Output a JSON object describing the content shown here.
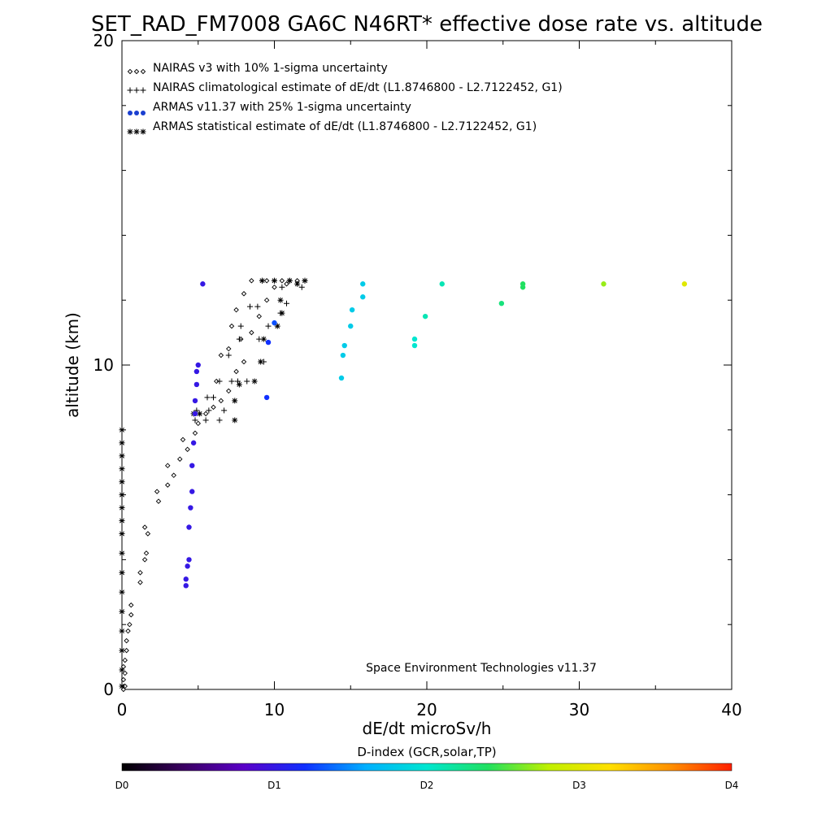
{
  "chart_data": {
    "type": "scatter",
    "title": "SET_RAD_FM7008  GA6C N46RT* effective dose rate vs. altitude",
    "xlabel": "dE/dt microSv/h",
    "ylabel": "altitude (km)",
    "xlim": [
      0,
      40
    ],
    "ylim": [
      0,
      20
    ],
    "x_ticks": [
      "0",
      "10",
      "20",
      "30",
      "40"
    ],
    "y_ticks": [
      "0",
      "10",
      "20"
    ],
    "grid": false,
    "legend_position": "top-left",
    "legend": [
      {
        "symbol": "diamond",
        "marker": "◇◇◇",
        "label": "NAIRAS v3 with 10% 1-sigma uncertainty"
      },
      {
        "symbol": "plus",
        "marker": "+++",
        "label": "NAIRAS climatological estimate of dE/dt (L1.8746800 - L2.7122452, G1)"
      },
      {
        "symbol": "dot",
        "marker": "●●●",
        "label": "ARMAS v11.37 with 25% 1-sigma uncertainty",
        "color": "#1a3fd0"
      },
      {
        "symbol": "star",
        "marker": "***",
        "label": "ARMAS statistical estimate of dE/dt (L1.8746800 - L2.7122452, G1)"
      }
    ],
    "annotation": "Space Environment Technologies v11.37",
    "colorbar": {
      "title": "D-index (GCR,solar,TP)",
      "labels": [
        {
          "text": "D0",
          "value": 0
        },
        {
          "text": "D1",
          "value": 1
        },
        {
          "text": "D2",
          "value": 2
        },
        {
          "text": "D3",
          "value": 3
        },
        {
          "text": "D4",
          "value": 4
        }
      ],
      "colors": [
        "#000000",
        "#3a0060",
        "#5a00c8",
        "#1030ff",
        "#00b0ff",
        "#00e6d0",
        "#20e060",
        "#c0f000",
        "#ffe000",
        "#ff9000",
        "#ff2000"
      ]
    },
    "series": [
      {
        "name": "NAIRAS v3 with 10% 1-sigma uncertainty",
        "symbol": "diamond",
        "points": [
          [
            0.1,
            0.0
          ],
          [
            0.2,
            0.1
          ],
          [
            0.1,
            0.3
          ],
          [
            0.2,
            0.5
          ],
          [
            0.1,
            0.7
          ],
          [
            0.2,
            0.9
          ],
          [
            0.3,
            1.2
          ],
          [
            0.3,
            1.5
          ],
          [
            0.4,
            1.8
          ],
          [
            0.5,
            2.0
          ],
          [
            0.6,
            2.3
          ],
          [
            0.6,
            2.6
          ],
          [
            1.2,
            3.3
          ],
          [
            1.2,
            3.6
          ],
          [
            1.5,
            4.0
          ],
          [
            1.6,
            4.2
          ],
          [
            1.7,
            4.8
          ],
          [
            1.5,
            5.0
          ],
          [
            2.4,
            5.8
          ],
          [
            2.3,
            6.1
          ],
          [
            3.0,
            6.3
          ],
          [
            3.4,
            6.6
          ],
          [
            3.0,
            6.9
          ],
          [
            3.8,
            7.1
          ],
          [
            4.3,
            7.4
          ],
          [
            4.0,
            7.7
          ],
          [
            4.8,
            7.9
          ],
          [
            5.0,
            8.2
          ],
          [
            5.5,
            8.5
          ],
          [
            6.0,
            8.7
          ],
          [
            6.5,
            8.9
          ],
          [
            7.0,
            9.2
          ],
          [
            6.2,
            9.5
          ],
          [
            7.5,
            9.8
          ],
          [
            8.0,
            10.1
          ],
          [
            6.5,
            10.3
          ],
          [
            7.0,
            10.5
          ],
          [
            7.8,
            10.8
          ],
          [
            8.5,
            11.0
          ],
          [
            7.2,
            11.2
          ],
          [
            9.0,
            11.5
          ],
          [
            7.5,
            11.7
          ],
          [
            9.5,
            12.0
          ],
          [
            8.0,
            12.2
          ],
          [
            10.0,
            12.4
          ],
          [
            10.8,
            12.5
          ],
          [
            8.5,
            12.6
          ],
          [
            9.5,
            12.6
          ],
          [
            10.5,
            12.6
          ],
          [
            11.5,
            12.6
          ]
        ]
      },
      {
        "name": "NAIRAS climatological estimate of dE/dt (L1.8746800 - L2.7122452, G1)",
        "symbol": "plus",
        "points": [
          [
            4.8,
            8.3
          ],
          [
            5.5,
            8.3
          ],
          [
            6.4,
            8.3
          ],
          [
            4.9,
            8.6
          ],
          [
            5.7,
            8.6
          ],
          [
            6.7,
            8.6
          ],
          [
            5.6,
            9.0
          ],
          [
            6.0,
            9.0
          ],
          [
            6.4,
            9.5
          ],
          [
            7.6,
            9.5
          ],
          [
            7.2,
            9.5
          ],
          [
            8.2,
            9.5
          ],
          [
            7.0,
            10.3
          ],
          [
            9.3,
            10.1
          ],
          [
            7.7,
            10.8
          ],
          [
            9.0,
            10.8
          ],
          [
            7.8,
            11.2
          ],
          [
            9.6,
            11.2
          ],
          [
            8.4,
            11.8
          ],
          [
            8.9,
            11.8
          ],
          [
            10.4,
            11.6
          ],
          [
            10.8,
            11.9
          ],
          [
            10.5,
            12.4
          ],
          [
            11.8,
            12.4
          ],
          [
            9.2,
            12.6
          ],
          [
            10.0,
            12.6
          ],
          [
            11.0,
            12.6
          ],
          [
            12.0,
            12.6
          ]
        ]
      },
      {
        "name": "ARMAS statistical estimate of dE/dt (L1.8746800 - L2.7122452, G1)",
        "symbol": "star",
        "points": [
          [
            0.0,
            8.0
          ],
          [
            0.0,
            7.6
          ],
          [
            0.0,
            7.2
          ],
          [
            0.0,
            6.8
          ],
          [
            0.0,
            6.4
          ],
          [
            0.0,
            6.0
          ],
          [
            0.0,
            5.6
          ],
          [
            0.0,
            5.2
          ],
          [
            0.0,
            4.8
          ],
          [
            0.0,
            4.2
          ],
          [
            0.0,
            3.6
          ],
          [
            0.0,
            3.0
          ],
          [
            0.0,
            2.4
          ],
          [
            0.0,
            1.8
          ],
          [
            0.0,
            1.2
          ],
          [
            0.0,
            0.6
          ],
          [
            0.0,
            0.1
          ],
          [
            4.7,
            8.5
          ],
          [
            5.1,
            8.5
          ],
          [
            7.4,
            8.3
          ],
          [
            7.4,
            8.9
          ],
          [
            7.7,
            9.4
          ],
          [
            8.7,
            9.5
          ],
          [
            9.1,
            10.1
          ],
          [
            9.3,
            10.8
          ],
          [
            10.2,
            11.2
          ],
          [
            10.5,
            11.6
          ],
          [
            10.4,
            12.0
          ],
          [
            11.5,
            12.5
          ],
          [
            12.0,
            12.6
          ],
          [
            9.2,
            12.6
          ],
          [
            10.0,
            12.6
          ],
          [
            11.0,
            12.6
          ]
        ]
      },
      {
        "name": "ARMAS v11.37 with 25% 1-sigma uncertainty",
        "symbol": "dot",
        "points": [
          {
            "x": 4.2,
            "y": 3.2,
            "d": 1.0
          },
          {
            "x": 4.2,
            "y": 3.4,
            "d": 1.0
          },
          {
            "x": 4.3,
            "y": 3.8,
            "d": 1.0
          },
          {
            "x": 4.4,
            "y": 4.0,
            "d": 1.0
          },
          {
            "x": 4.4,
            "y": 5.0,
            "d": 1.0
          },
          {
            "x": 4.5,
            "y": 5.6,
            "d": 1.0
          },
          {
            "x": 4.6,
            "y": 6.1,
            "d": 1.0
          },
          {
            "x": 4.6,
            "y": 6.9,
            "d": 1.0
          },
          {
            "x": 4.7,
            "y": 7.6,
            "d": 1.0
          },
          {
            "x": 4.8,
            "y": 8.5,
            "d": 1.0
          },
          {
            "x": 4.8,
            "y": 8.9,
            "d": 1.0
          },
          {
            "x": 4.9,
            "y": 9.4,
            "d": 1.0
          },
          {
            "x": 4.9,
            "y": 9.8,
            "d": 1.0
          },
          {
            "x": 5.0,
            "y": 10.0,
            "d": 1.0
          },
          {
            "x": 5.3,
            "y": 12.5,
            "d": 1.0
          },
          {
            "x": 9.5,
            "y": 9.0,
            "d": 1.2
          },
          {
            "x": 9.6,
            "y": 10.7,
            "d": 1.2
          },
          {
            "x": 10.0,
            "y": 11.3,
            "d": 1.3
          },
          {
            "x": 14.4,
            "y": 9.6,
            "d": 1.8
          },
          {
            "x": 14.5,
            "y": 10.3,
            "d": 1.8
          },
          {
            "x": 14.6,
            "y": 10.6,
            "d": 1.8
          },
          {
            "x": 15.0,
            "y": 11.2,
            "d": 1.8
          },
          {
            "x": 15.1,
            "y": 11.7,
            "d": 1.8
          },
          {
            "x": 15.8,
            "y": 12.1,
            "d": 1.8
          },
          {
            "x": 15.8,
            "y": 12.5,
            "d": 1.8
          },
          {
            "x": 19.2,
            "y": 10.6,
            "d": 2.0
          },
          {
            "x": 19.2,
            "y": 10.8,
            "d": 2.0
          },
          {
            "x": 19.9,
            "y": 11.5,
            "d": 2.1
          },
          {
            "x": 21.0,
            "y": 12.5,
            "d": 2.1
          },
          {
            "x": 24.9,
            "y": 11.9,
            "d": 2.3
          },
          {
            "x": 26.3,
            "y": 12.4,
            "d": 2.4
          },
          {
            "x": 26.3,
            "y": 12.5,
            "d": 2.4
          },
          {
            "x": 31.6,
            "y": 12.5,
            "d": 2.7
          },
          {
            "x": 36.9,
            "y": 12.5,
            "d": 3.0
          }
        ]
      }
    ]
  }
}
